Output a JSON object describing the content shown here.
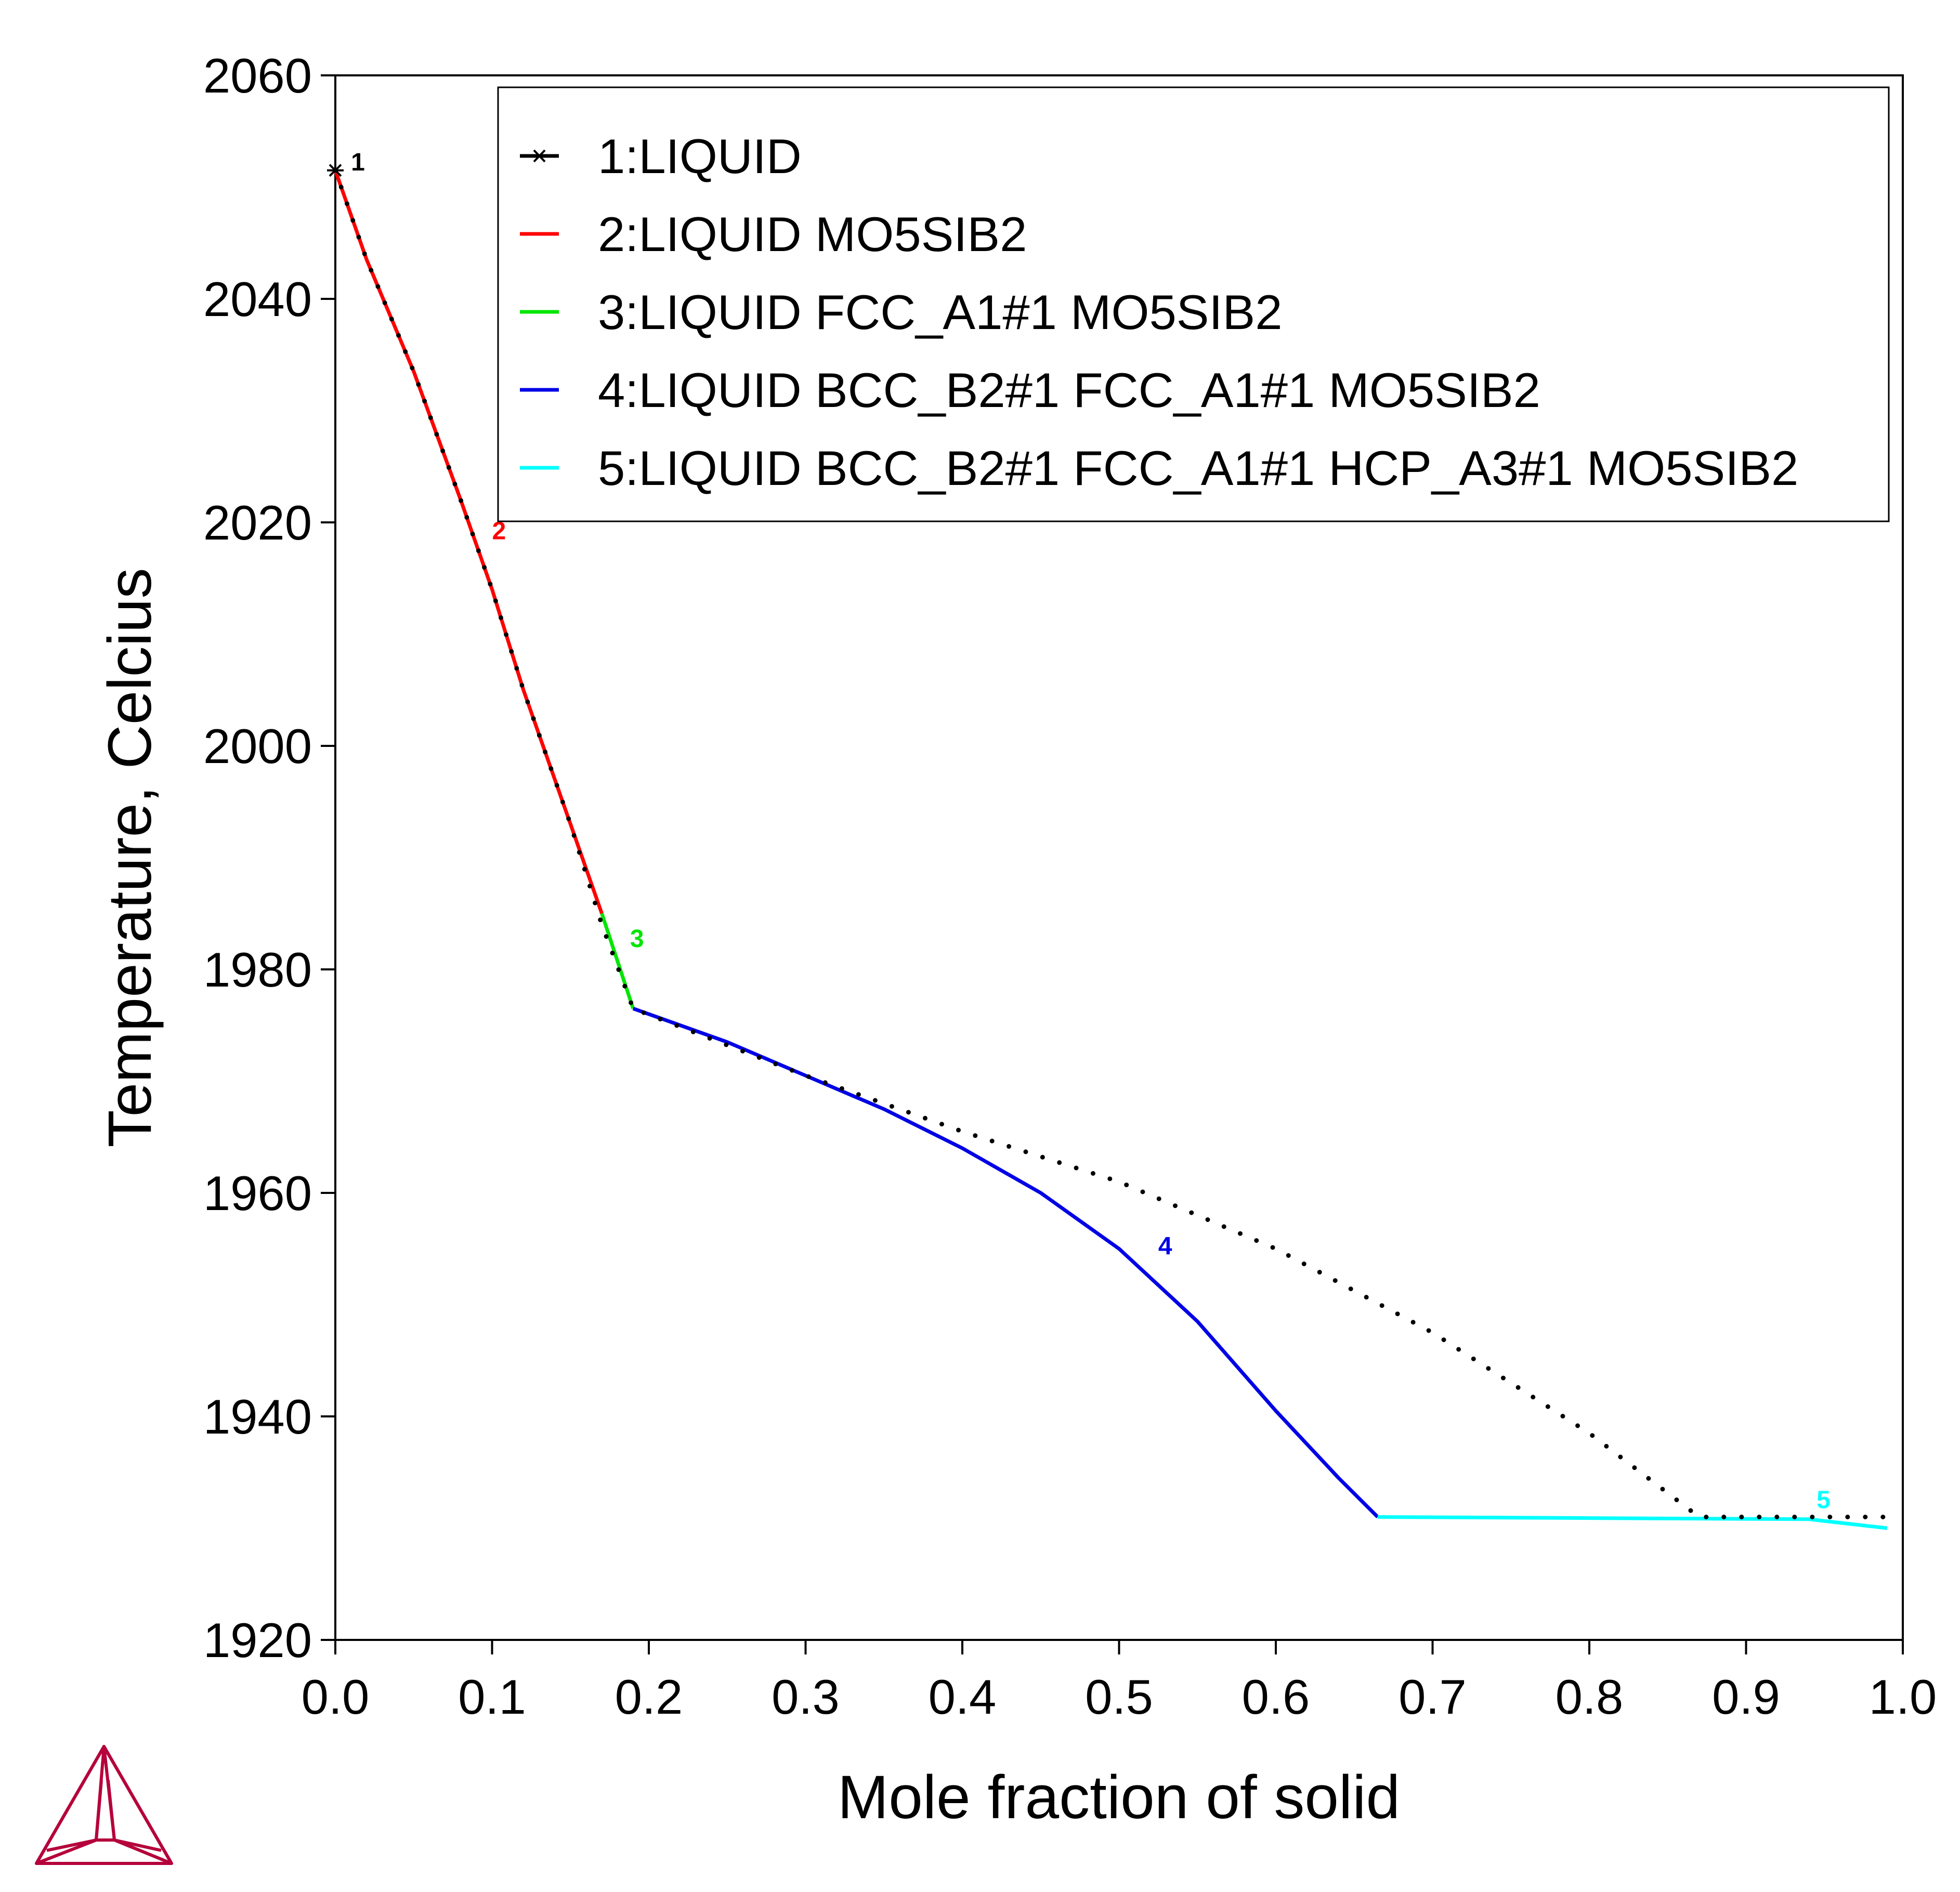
{
  "chart_data": {
    "type": "line",
    "xlabel": "Mole fraction of solid",
    "ylabel": "Temperature, Celcius",
    "xlim": [
      0.0,
      1.0
    ],
    "ylim": [
      1920,
      2060
    ],
    "x_ticks": [
      0.0,
      0.1,
      0.2,
      0.3,
      0.4,
      0.5,
      0.6,
      0.7,
      0.8,
      0.9,
      1.0
    ],
    "x_tick_labels": [
      "0.0",
      "0.1",
      "0.2",
      "0.3",
      "0.4",
      "0.5",
      "0.6",
      "0.7",
      "0.8",
      "0.9",
      "1.0"
    ],
    "y_ticks": [
      1920,
      1940,
      1960,
      1980,
      2000,
      2020,
      2040,
      2060
    ],
    "y_tick_labels": [
      "1920",
      "1940",
      "1960",
      "1980",
      "2000",
      "2020",
      "2040",
      "2060"
    ],
    "grid": false,
    "legend_position": "top-right",
    "series": [
      {
        "name": "1:LIQUID",
        "color": "#000000",
        "style": "dotted",
        "marker": "star",
        "label": "1",
        "label_at": [
          0.01,
          2051.5
        ],
        "x": [
          0.0,
          0.02,
          0.05,
          0.08,
          0.1,
          0.12,
          0.15,
          0.17,
          0.19,
          0.3,
          0.4,
          0.5,
          0.6,
          0.7,
          0.8,
          0.87,
          0.94,
          0.99
        ],
        "y": [
          2051.5,
          2043.5,
          2033.5,
          2022.0,
          2014.0,
          2005.0,
          1993.0,
          1984.0,
          1976.5,
          1970.5,
          1965.5,
          1961.0,
          1955.0,
          1947.5,
          1938.5,
          1931.0,
          1931.0,
          1931.0
        ]
      },
      {
        "name": "2:LIQUID MO5SIB2",
        "color": "#ff0000",
        "style": "solid",
        "label": "2",
        "label_at": [
          0.1,
          2018.5
        ],
        "x": [
          0.0,
          0.02,
          0.05,
          0.08,
          0.1,
          0.12,
          0.15,
          0.17
        ],
        "y": [
          2051.5,
          2043.5,
          2033.5,
          2022.0,
          2014.0,
          2005.0,
          1993.0,
          1985.0
        ]
      },
      {
        "name": "3:LIQUID FCC_A1#1 MO5SIB2",
        "color": "#00e600",
        "style": "solid",
        "label": "3",
        "label_at": [
          0.188,
          1982.0
        ],
        "x": [
          0.17,
          0.19
        ],
        "y": [
          1985.0,
          1976.5
        ]
      },
      {
        "name": "4:LIQUID BCC_B2#1 FCC_A1#1 MO5SIB2",
        "color": "#0000e6",
        "style": "solid",
        "label": "4",
        "label_at": [
          0.525,
          1954.5
        ],
        "x": [
          0.19,
          0.25,
          0.3,
          0.35,
          0.4,
          0.45,
          0.5,
          0.55,
          0.6,
          0.64,
          0.665
        ],
        "y": [
          1976.5,
          1973.5,
          1970.5,
          1967.5,
          1964.0,
          1960.0,
          1955.0,
          1948.5,
          1940.5,
          1934.5,
          1931.0
        ]
      },
      {
        "name": "5:LIQUID BCC_B2#1 FCC_A1#1 HCP_A3#1 MO5SIB2",
        "color": "#00ffff",
        "style": "solid",
        "label": "5",
        "label_at": [
          0.945,
          1931.8
        ],
        "x": [
          0.665,
          0.8,
          0.94,
          0.99
        ],
        "y": [
          1931.0,
          1930.9,
          1930.8,
          1930.0
        ]
      }
    ]
  }
}
